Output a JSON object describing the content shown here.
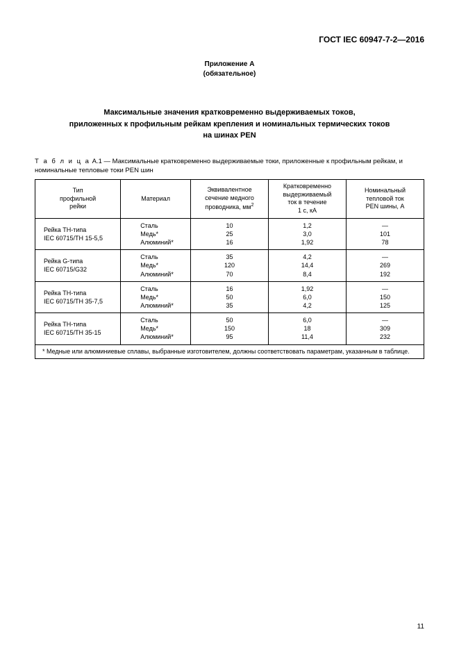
{
  "doc_id": "ГОСТ  IEC  60947-7-2—2016",
  "annex_title": "Приложение А",
  "annex_sub": "(обязательное)",
  "main_title_l1": "Максимальные значения кратковременно выдерживаемых токов,",
  "main_title_l2": "приложенных к профильным рейкам крепления и номинальных термических токов",
  "main_title_l3": "на шинах PEN",
  "caption_prefix": "Т а б л и ц а",
  "caption_rest": "  А.1 — Максимальные кратковременно выдерживаемые токи, приложенные к профильным рейкам, и номинальные тепловые токи PEN шин",
  "columns": {
    "c0_l1": "Тип",
    "c0_l2": "профильной",
    "c0_l3": "рейки",
    "c1": "Материал",
    "c2_l1": "Эквивалентное",
    "c2_l2": "сечение медного",
    "c2_l3": "проводника, мм",
    "c3_l1": "Кратковременно",
    "c3_l2": "выдерживаемый",
    "c3_l3": "ток в течение",
    "c3_l4": "1 с, кА",
    "c4_l1": "Номинальный",
    "c4_l2": "тепловой ток",
    "c4_l3": "PEN шины, А"
  },
  "materials": {
    "steel": "Сталь",
    "copper": "Медь*",
    "alum": "Алюминий*"
  },
  "rows": [
    {
      "type_l1": "Рейка TH-типа",
      "type_l2": "IEC 60715/TH 15-5,5",
      "eq": [
        "10",
        "25",
        "16"
      ],
      "short": [
        "1,2",
        "3,0",
        "1,92"
      ],
      "nom": [
        "—",
        "101",
        "78"
      ]
    },
    {
      "type_l1": "Рейка G-типа",
      "type_l2": "IEC 60715/G32",
      "eq": [
        "35",
        "120",
        "70"
      ],
      "short": [
        "4,2",
        "14,4",
        "8,4"
      ],
      "nom": [
        "—",
        "269",
        "192"
      ]
    },
    {
      "type_l1": "Рейка TH-типа",
      "type_l2": "IEC 60715/TH 35-7,5",
      "eq": [
        "16",
        "50",
        "35"
      ],
      "short": [
        "1,92",
        "6,0",
        "4,2"
      ],
      "nom": [
        "—",
        "150",
        "125"
      ]
    },
    {
      "type_l1": "Рейка TH-типа",
      "type_l2": "IEC 60715/TH 35-15",
      "eq": [
        "50",
        "150",
        "95"
      ],
      "short": [
        "6,0",
        "18",
        "11,4"
      ],
      "nom": [
        "—",
        "309",
        "232"
      ]
    }
  ],
  "footnote": "*  Медные или алюминиевые сплавы, выбранные изготовителем, должны соответствовать параметрам, указанным в таблице.",
  "page_number": "11",
  "layout": {
    "col_widths_pct": [
      22,
      18,
      20,
      20,
      20
    ]
  }
}
